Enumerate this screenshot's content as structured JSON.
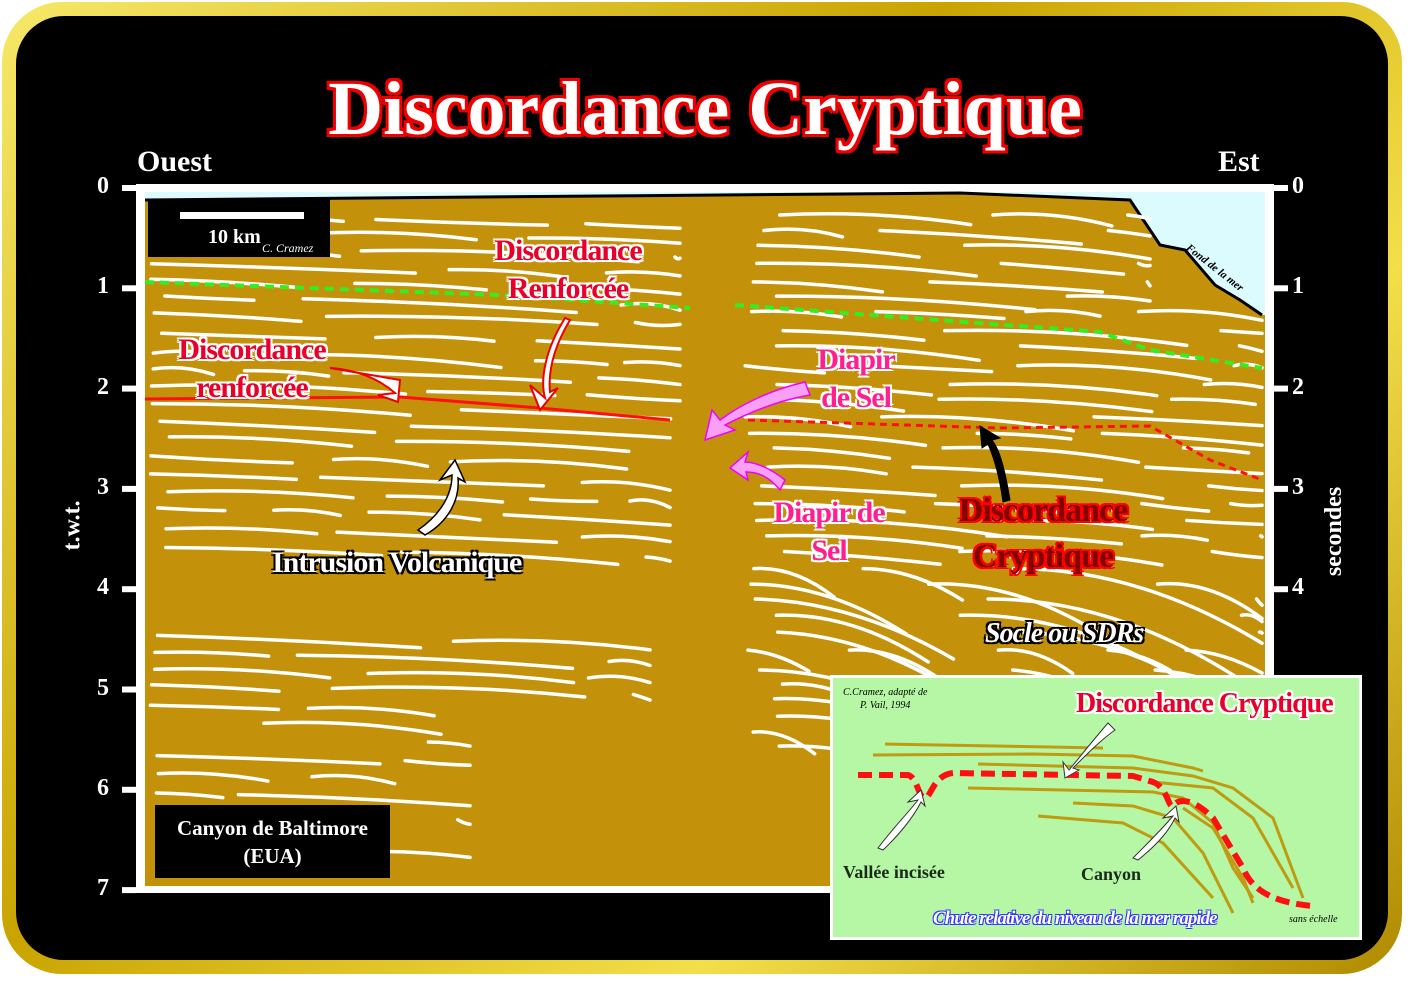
{
  "title": "Discordance Cryptique",
  "west_label": "Ouest",
  "east_label": "Est",
  "left_axis": {
    "label": "t.w.t.",
    "ticks": [
      "0",
      "1",
      "2",
      "3",
      "4",
      "5",
      "6",
      "7"
    ]
  },
  "right_axis": {
    "label": "secondes",
    "ticks": [
      "0",
      "1",
      "2",
      "3",
      "4"
    ]
  },
  "scale_bar": {
    "label": "10 km",
    "credit": "C. Cramez"
  },
  "seafloor_label": "Fond de la mer",
  "annotations": {
    "discordance_renforcee_top": [
      "Discordance",
      "Renforcée"
    ],
    "discordance_renforcee_left": [
      "Discordance",
      "renforcée"
    ],
    "diapir_upper": [
      "Diapir",
      "de Sel"
    ],
    "diapir_lower": [
      "Diapir de",
      "Sel"
    ],
    "discordance_cryptique": [
      "Discordance",
      "Cryptique"
    ],
    "intrusion": "Intrusion Volcanique",
    "socle": "Socle ou SDRs"
  },
  "location_box": [
    "Canyon de Baltimore",
    "(EUA)"
  ],
  "inset": {
    "credit": [
      "C.Cramez, adapté de",
      "P. Vail, 1994"
    ],
    "title": "Discordance Cryptique",
    "vallee": "Vallée incisée",
    "canyon": "Canyon",
    "caption": "Chute relative du niveau de la mer rapide",
    "scale_note": "sans échelle"
  },
  "colors": {
    "sediment": "#c4920a",
    "reflector": "#ffffff",
    "unconformity": "#ff1010",
    "green_marker": "#33ee22",
    "sea": "#dcfbff",
    "inset_bg": "#b5f7a5",
    "salt_arrow": "#f9a0f5"
  }
}
